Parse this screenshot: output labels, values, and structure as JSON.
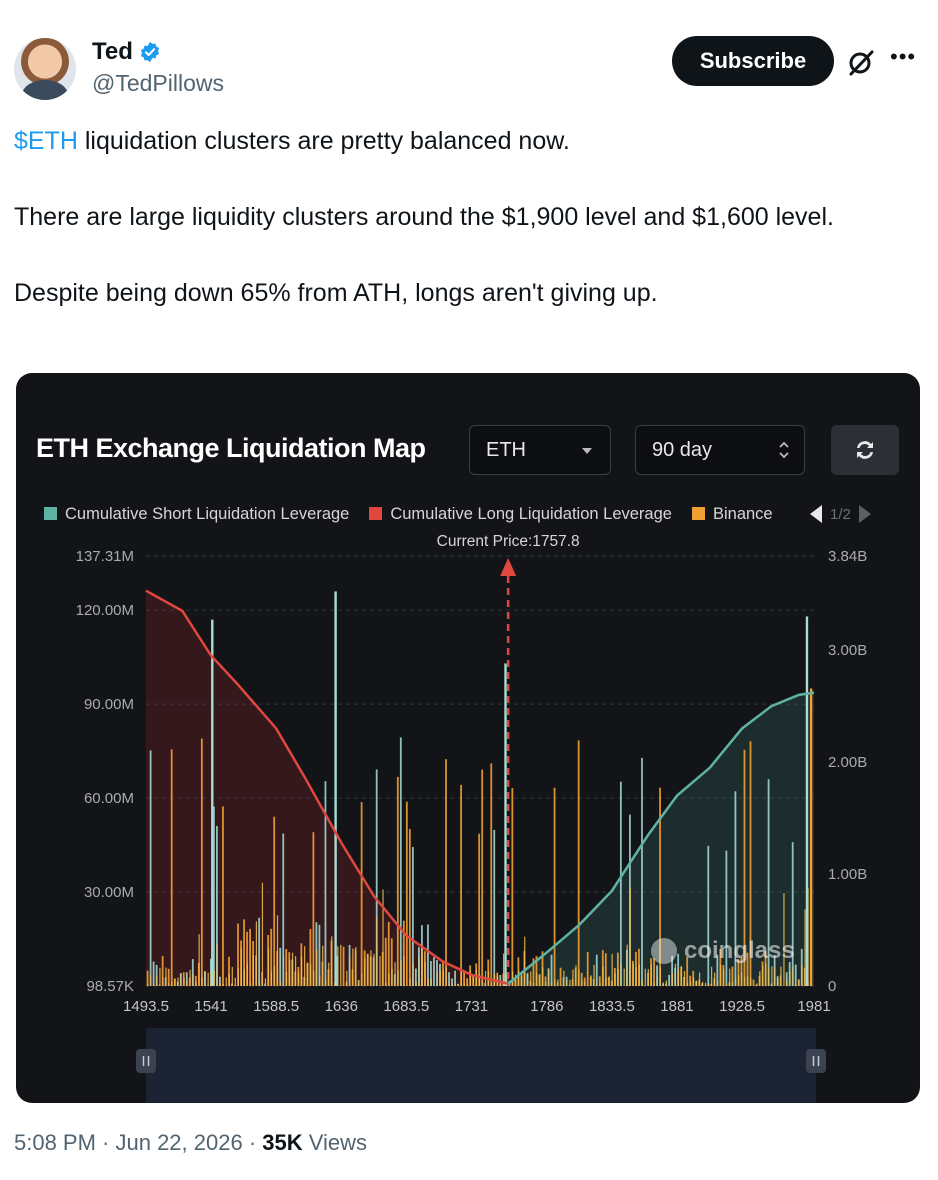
{
  "author": {
    "name": "Ted",
    "handle": "@TedPillows",
    "verified": true
  },
  "header": {
    "subscribe_label": "Subscribe",
    "more_icon": "more-icon",
    "grok_icon": "grok-icon"
  },
  "tweet": {
    "cashtag": "$ETH",
    "line1_rest": " liquidation clusters are pretty balanced now.",
    "line2": "There are large liquidity clusters around the $1,900 level and $1,600 level.",
    "line3": "Despite being down 65% from ATH, longs aren't giving up."
  },
  "media": {
    "title": "ETH Exchange Liquidation Map",
    "symbol_select": "ETH",
    "range_select": "90 day",
    "legend": [
      {
        "label": "Cumulative Short Liquidation Leverage",
        "color": "#5fb3a3"
      },
      {
        "label": "Cumulative Long Liquidation Leverage",
        "color": "#e0473f"
      },
      {
        "label": "Binance",
        "color": "#f0a032"
      }
    ],
    "pager": "1/2",
    "watermark": "coinglass"
  },
  "chart_data": {
    "type": "bar",
    "current_price_label": "Current Price:1757.8",
    "current_price": 1757.8,
    "x_ticks": [
      "1493.5",
      "1541",
      "1588.5",
      "1636",
      "1683.5",
      "1731",
      "1786",
      "1833.5",
      "1881",
      "1928.5",
      "1981"
    ],
    "x_range": [
      1493.5,
      1981
    ],
    "y_left_ticks": [
      "98.57K",
      "30.00M",
      "60.00M",
      "90.00M",
      "120.00M",
      "137.31M"
    ],
    "y_left_range": [
      0,
      137.31
    ],
    "y_right_ticks": [
      "0",
      "1.00B",
      "2.00B",
      "3.00B",
      "3.84B"
    ],
    "y_right_range": [
      0,
      3.84
    ],
    "cumulative_long": {
      "x": [
        1493.5,
        1520,
        1541,
        1560,
        1588.5,
        1610,
        1636,
        1660,
        1683.5,
        1710,
        1731,
        1757.8
      ],
      "y": [
        3.53,
        3.35,
        2.95,
        2.7,
        2.3,
        1.85,
        1.28,
        0.8,
        0.45,
        0.22,
        0.1,
        0.02
      ]
    },
    "cumulative_short": {
      "x": [
        1757.8,
        1786,
        1810,
        1833.5,
        1860,
        1881,
        1905,
        1928.5,
        1950,
        1970,
        1981
      ],
      "y": [
        0.02,
        0.3,
        0.55,
        0.85,
        1.35,
        1.7,
        1.95,
        2.3,
        2.5,
        2.6,
        2.62
      ]
    },
    "bar_peaks": [
      {
        "x": 1541,
        "value": 117,
        "series": "Short"
      },
      {
        "x": 1631,
        "value": 126,
        "series": "Short"
      },
      {
        "x": 1755,
        "value": 103,
        "series": "Short"
      },
      {
        "x": 1975,
        "value": 118,
        "series": "Short"
      },
      {
        "x": 1978,
        "value": 95,
        "series": "Binance"
      }
    ]
  },
  "footer": {
    "time": "5:08 PM · Jun 22, 2026 · ",
    "views_count": "35K",
    "views_label": " Views"
  }
}
